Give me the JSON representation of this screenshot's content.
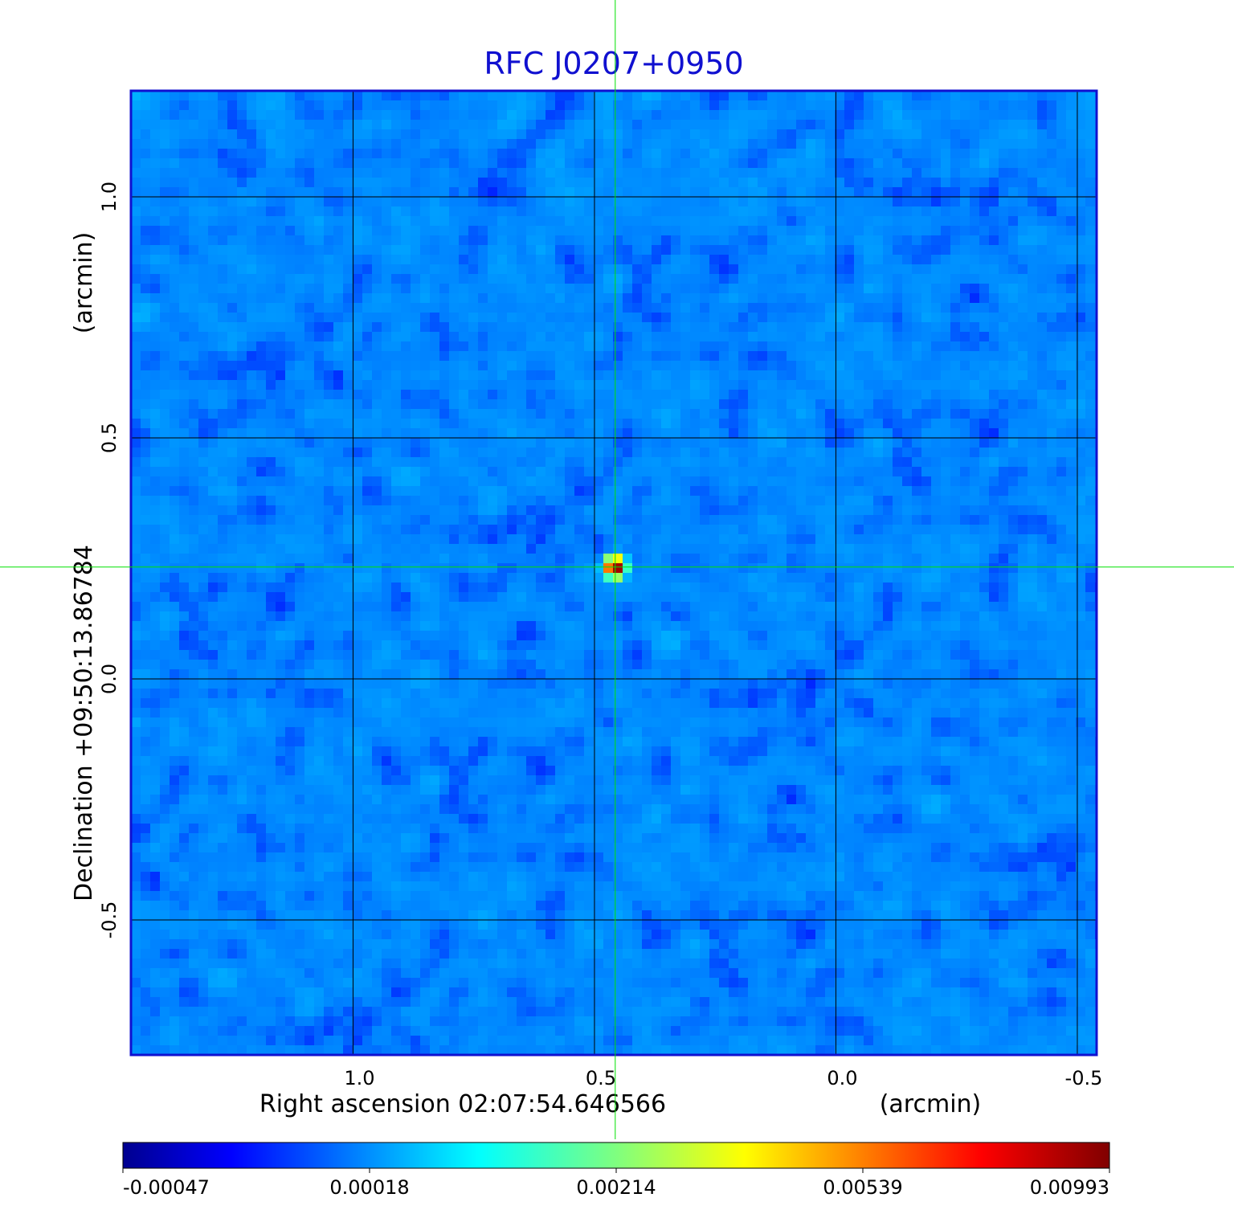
{
  "chart_data": {
    "type": "heatmap",
    "title": "RFC J0207+0950",
    "xlabel": "Right ascension  02:07:54.646566",
    "xunit": "(arcmin)",
    "ylabel": "Declination  +09:50:13.86784",
    "yunit": "(arcmin)",
    "xlim": [
      1.46,
      -0.54
    ],
    "ylim": [
      -0.78,
      1.22
    ],
    "x_reversed": true,
    "xticks": [
      {
        "value": 1.0,
        "label": "1.0"
      },
      {
        "value": 0.5,
        "label": "0.5"
      },
      {
        "value": 0.0,
        "label": "0.0"
      },
      {
        "value": -0.5,
        "label": "-0.5"
      }
    ],
    "yticks": [
      {
        "value": 1.0,
        "label": "1.0"
      },
      {
        "value": 0.5,
        "label": "0.5"
      },
      {
        "value": 0.0,
        "label": "0.0"
      },
      {
        "value": -0.5,
        "label": "-0.5"
      }
    ],
    "grid": true,
    "grid_color": "#000000",
    "crosshair": {
      "x": 0.457,
      "y": 0.232,
      "color": "#00e000"
    },
    "source": {
      "x": 0.457,
      "y": 0.232,
      "peak": 0.00993
    },
    "background": {
      "mean": 0.00025,
      "sigma": 0.00018
    },
    "colormap": "jet",
    "colorbar": {
      "position": "bottom",
      "min": -0.00047,
      "max": 0.00993,
      "ticks": [
        "-0.00047",
        "0.00018",
        "0.00214",
        "0.00539",
        "0.00993"
      ]
    },
    "frame_color": "#1010d0"
  }
}
